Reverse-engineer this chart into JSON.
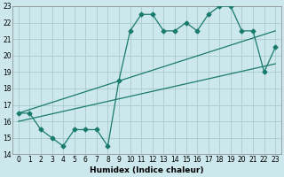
{
  "xlabel": "Humidex (Indice chaleur)",
  "background_color": "#cce8ec",
  "grid_color": "#aacccc",
  "line_color": "#1a7a6e",
  "xlim": [
    -0.5,
    23.5
  ],
  "ylim": [
    14,
    23
  ],
  "xticks": [
    0,
    1,
    2,
    3,
    4,
    5,
    6,
    7,
    8,
    9,
    10,
    11,
    12,
    13,
    14,
    15,
    16,
    17,
    18,
    19,
    20,
    21,
    22,
    23
  ],
  "yticks": [
    14,
    15,
    16,
    17,
    18,
    19,
    20,
    21,
    22,
    23
  ],
  "line1_x": [
    0,
    1,
    2,
    3,
    4,
    5,
    6,
    7,
    8,
    9,
    10,
    11,
    12,
    13,
    14,
    15,
    16,
    17,
    18,
    19,
    20,
    21,
    22,
    23
  ],
  "line1_y": [
    16.5,
    16.5,
    15.5,
    15.0,
    14.5,
    15.5,
    15.5,
    15.5,
    14.5,
    18.5,
    21.5,
    22.5,
    22.5,
    21.5,
    21.5,
    22.0,
    21.5,
    22.5,
    23.0,
    23.0,
    21.5,
    21.5,
    19.0,
    20.5
  ],
  "line2_x": [
    0,
    23
  ],
  "line2_y": [
    16.5,
    21.5
  ],
  "line3_x": [
    0,
    23
  ],
  "line3_y": [
    16.0,
    19.5
  ],
  "marker_style": "D",
  "marker_size": 2.5,
  "line_width": 0.9
}
